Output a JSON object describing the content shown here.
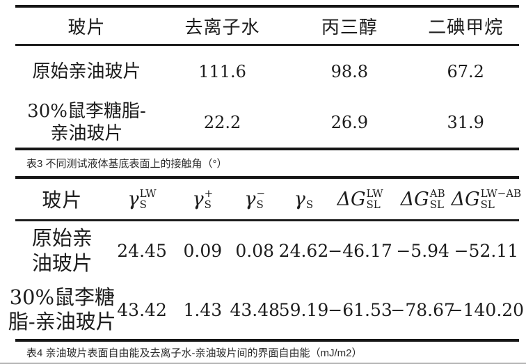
{
  "table3": {
    "caption": "表3 不同测试液体基底表面上的接触角（°）",
    "headers": [
      "玻片",
      "去离子水",
      "丙三醇",
      "二碘甲烷"
    ],
    "rows": [
      {
        "label": "原始亲油玻片",
        "values": [
          "111.6",
          "98.8",
          "67.2"
        ]
      },
      {
        "line1": "30%鼠李糖脂-",
        "line2": "亲油玻片",
        "values": [
          "22.2",
          "26.9",
          "31.9"
        ]
      }
    ]
  },
  "table4": {
    "caption": "表4 亲油玻片表面自由能及去离子水-亲油玻片间的界面自由能（mJ/m2）",
    "col0_header": "玻片",
    "symbols": [
      {
        "base": "γ",
        "sub": "S",
        "sup": "LW"
      },
      {
        "base": "γ",
        "sub": "S",
        "sup": "+"
      },
      {
        "base": "γ",
        "sub": "S",
        "sup": "−"
      },
      {
        "base": "γ",
        "sub": "S",
        "sup": ""
      },
      {
        "base": "ΔG",
        "sub": "SL",
        "sup": "LW"
      },
      {
        "base": "ΔG",
        "sub": "SL",
        "sup": "AB"
      },
      {
        "base": "ΔG",
        "sub": "SL",
        "sup": "LW−AB"
      }
    ],
    "rows": [
      {
        "line1": "原始亲",
        "line2": "油玻片",
        "values": [
          "24.45",
          "0.09",
          "0.08",
          "24.62",
          "−46.17",
          "−5.94",
          "−52.11"
        ]
      },
      {
        "line1": "30%鼠李糖",
        "line2": "脂-亲油玻片",
        "values": [
          "43.42",
          "1.43",
          "43.48",
          "59.19",
          "−61.53",
          "−78.67",
          "−140.20"
        ]
      }
    ]
  }
}
